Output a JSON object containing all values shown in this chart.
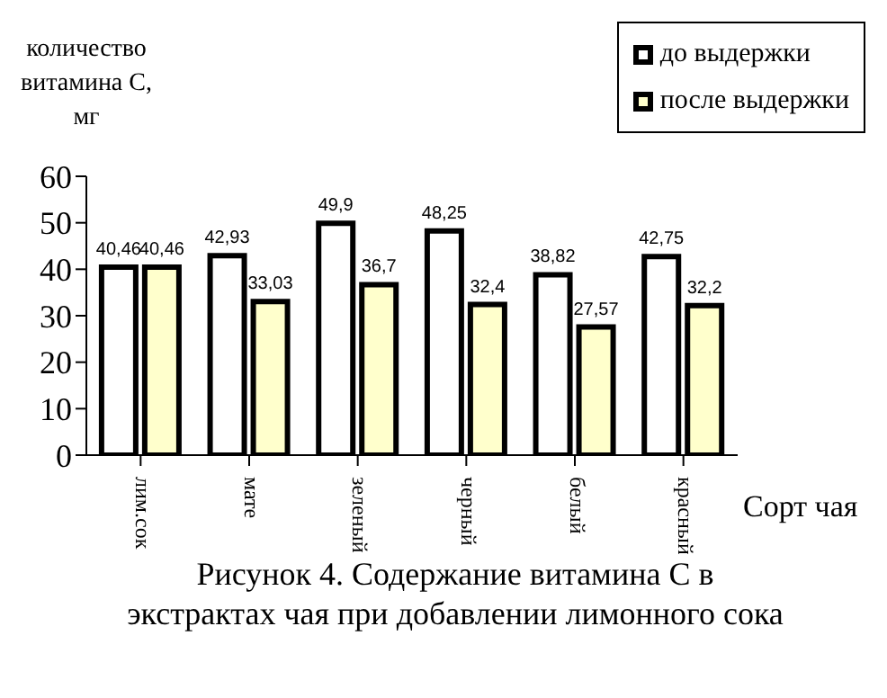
{
  "chart_data": {
    "type": "bar",
    "title": "Рисунок 4.  Содержание витамина С в экстрактах чая при добавлении лимонного сока",
    "xlabel": "Сорт чая",
    "ylabel": "количество витамина С, мг",
    "categories": [
      "лим.сок",
      "мате",
      "зеленый",
      "черный",
      "белый",
      "красный"
    ],
    "series": [
      {
        "name": "до выдержки",
        "color": "#ffffff",
        "values": [
          40.46,
          42.93,
          49.9,
          48.25,
          38.82,
          42.75
        ],
        "value_labels": [
          "40,46",
          "42,93",
          "49,9",
          "48,25",
          "38,82",
          "42,75"
        ]
      },
      {
        "name": "после выдержки",
        "color": "#ffffcc",
        "values": [
          40.46,
          33.03,
          36.7,
          32.4,
          27.57,
          32.2
        ],
        "value_labels": [
          "40,46",
          "33,03",
          "36,7",
          "32,4",
          "27,57",
          "32,2"
        ]
      }
    ],
    "ylim": [
      0,
      60
    ],
    "yticks": [
      0,
      10,
      20,
      30,
      40,
      50,
      60
    ],
    "legend": "top right",
    "grid": false
  }
}
